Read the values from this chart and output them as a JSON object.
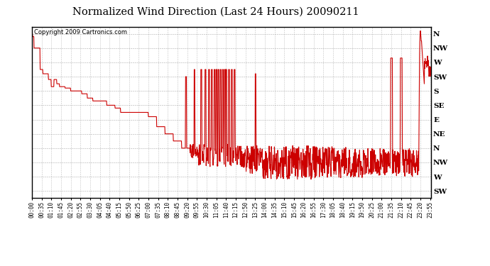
{
  "title": "Normalized Wind Direction (Last 24 Hours) 20090211",
  "copyright_text": "Copyright 2009 Cartronics.com",
  "line_color": "#cc0000",
  "background_color": "#ffffff",
  "grid_color": "#999999",
  "title_fontsize": 11,
  "ytick_labels": [
    "N",
    "NW",
    "W",
    "SW",
    "S",
    "SE",
    "E",
    "NE",
    "N",
    "NW",
    "W",
    "SW"
  ],
  "ytick_values": [
    12,
    11,
    10,
    9,
    8,
    7,
    6,
    5,
    4,
    3,
    2,
    1
  ],
  "ylim": [
    0.5,
    12.5
  ],
  "n_points": 1440,
  "xtick_interval": 35
}
